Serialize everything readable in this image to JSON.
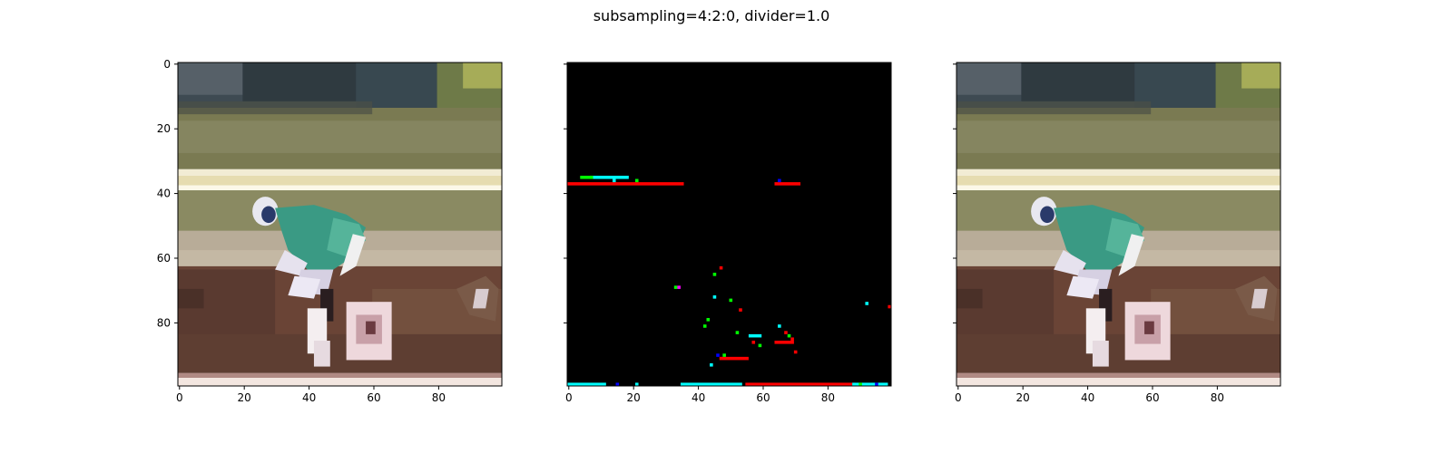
{
  "figure": {
    "title": "subsampling=4:2:0, divider=1.0"
  },
  "colors": {
    "black": "#000000",
    "red": "#ff0000",
    "green": "#00ff00",
    "blue": "#0000ff",
    "cyan": "#00ffff",
    "magenta": "#ff00ff"
  },
  "chart_data": [
    {
      "type": "heatmap",
      "panel": "original-image",
      "title": "",
      "xlabel": "",
      "ylabel": "",
      "xlim": [
        0,
        99
      ],
      "ylim": [
        99,
        0
      ],
      "xticks": [
        0,
        20,
        40,
        60,
        80
      ],
      "yticks": [
        0,
        20,
        40,
        60,
        80
      ],
      "show_yticklabels": true,
      "grid": false,
      "content": "photo of a jockey in teal silks on a brown horse"
    },
    {
      "type": "heatmap",
      "panel": "difference-image",
      "title": "",
      "xlabel": "",
      "ylabel": "",
      "xlim": [
        0,
        99
      ],
      "ylim": [
        99,
        0
      ],
      "xticks": [
        0,
        20,
        40,
        60,
        80
      ],
      "yticks": [
        0,
        20,
        40,
        60,
        80
      ],
      "show_yticklabels": false,
      "grid": false,
      "background": "black",
      "segments": [
        {
          "y": 37,
          "x0": 0,
          "x1": 35,
          "color": "red"
        },
        {
          "y": 35,
          "x0": 7,
          "x1": 18,
          "color": "cyan"
        },
        {
          "y": 35,
          "x0": 4,
          "x1": 7,
          "color": "green"
        },
        {
          "y": 37,
          "x0": 64,
          "x1": 71,
          "color": "red"
        },
        {
          "y": 91,
          "x0": 47,
          "x1": 55,
          "color": "red"
        },
        {
          "y": 99,
          "x0": 0,
          "x1": 11,
          "color": "cyan"
        },
        {
          "y": 99,
          "x0": 35,
          "x1": 53,
          "color": "cyan"
        },
        {
          "y": 99,
          "x0": 55,
          "x1": 88,
          "color": "red"
        },
        {
          "y": 99,
          "x0": 88,
          "x1": 98,
          "color": "cyan"
        },
        {
          "y": 86,
          "x0": 64,
          "x1": 69,
          "color": "red"
        },
        {
          "y": 84,
          "x0": 56,
          "x1": 59,
          "color": "cyan"
        }
      ],
      "points": [
        {
          "x": 47,
          "y": 63,
          "color": "red"
        },
        {
          "x": 45,
          "y": 65,
          "color": "green"
        },
        {
          "x": 33,
          "y": 69,
          "color": "green"
        },
        {
          "x": 34,
          "y": 69,
          "color": "magenta"
        },
        {
          "x": 45,
          "y": 72,
          "color": "cyan"
        },
        {
          "x": 50,
          "y": 73,
          "color": "green"
        },
        {
          "x": 53,
          "y": 76,
          "color": "red"
        },
        {
          "x": 43,
          "y": 79,
          "color": "green"
        },
        {
          "x": 42,
          "y": 81,
          "color": "green"
        },
        {
          "x": 52,
          "y": 83,
          "color": "green"
        },
        {
          "x": 57,
          "y": 86,
          "color": "red"
        },
        {
          "x": 59,
          "y": 87,
          "color": "green"
        },
        {
          "x": 65,
          "y": 81,
          "color": "cyan"
        },
        {
          "x": 67,
          "y": 83,
          "color": "red"
        },
        {
          "x": 69,
          "y": 85,
          "color": "red"
        },
        {
          "x": 70,
          "y": 89,
          "color": "red"
        },
        {
          "x": 68,
          "y": 84,
          "color": "green"
        },
        {
          "x": 46,
          "y": 90,
          "color": "blue"
        },
        {
          "x": 48,
          "y": 90,
          "color": "green"
        },
        {
          "x": 44,
          "y": 93,
          "color": "cyan"
        },
        {
          "x": 92,
          "y": 74,
          "color": "cyan"
        },
        {
          "x": 99,
          "y": 75,
          "color": "red"
        },
        {
          "x": 14,
          "y": 36,
          "color": "cyan"
        },
        {
          "x": 21,
          "y": 36,
          "color": "green"
        },
        {
          "x": 65,
          "y": 36,
          "color": "blue"
        },
        {
          "x": 15,
          "y": 99,
          "color": "blue"
        },
        {
          "x": 21,
          "y": 99,
          "color": "cyan"
        },
        {
          "x": 95,
          "y": 99,
          "color": "blue"
        },
        {
          "x": 90,
          "y": 99,
          "color": "green"
        }
      ]
    },
    {
      "type": "heatmap",
      "panel": "reconstructed-image",
      "title": "",
      "xlabel": "",
      "ylabel": "",
      "xlim": [
        0,
        99
      ],
      "ylim": [
        99,
        0
      ],
      "xticks": [
        0,
        20,
        40,
        60,
        80
      ],
      "yticks": [
        0,
        20,
        40,
        60,
        80
      ],
      "show_yticklabels": false,
      "grid": false,
      "content": "photo of a jockey in teal silks on a brown horse"
    }
  ]
}
